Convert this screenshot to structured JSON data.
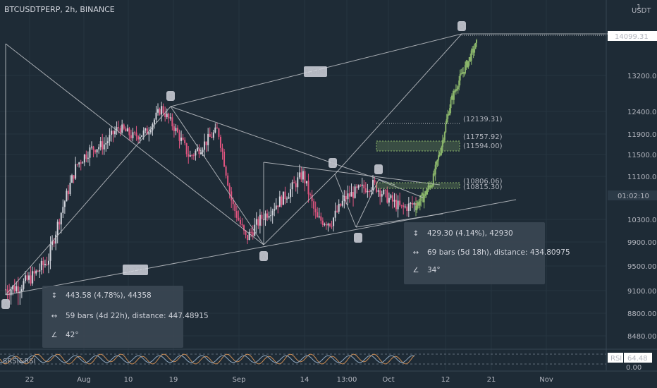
{
  "header": {
    "symbol": "BTCUSDTPERP, 2h, BINANCE"
  },
  "axis": {
    "currency_top": "1",
    "currency": "USDT",
    "price_ticks": [
      "13200.00",
      "12400.00",
      "11900.00",
      "11500.00",
      "11100.00",
      "10300.00",
      "9900.00",
      "9500.00",
      "9100.00",
      "8800.00",
      "8480.00"
    ],
    "price_tag": "14099.31",
    "current_time_tag": "01:02:10",
    "rsi_tag": "64.48",
    "rsi_tag_prefix": "RSI",
    "rsi_zero": "0.00",
    "time_ticks": [
      "22",
      "Aug",
      "10",
      "19",
      "Sep",
      "14",
      "13:00",
      "Oct",
      "12",
      "21",
      "Nov"
    ]
  },
  "pattern_labels": {
    "big_A": "A",
    "big_B": "B",
    "big_D": "D",
    "small_A": "A",
    "small_B": "B",
    "small_C": "C",
    "small_D": "D",
    "ratio_top": "1.604",
    "ratio_bottom": "0.778"
  },
  "targets": [
    "(12139.31)",
    "(11757.92)",
    "(11594.00)",
    "(10806.06)",
    "(10815.30)"
  ],
  "info_left": {
    "price": "443.58 (4.78%), 44358",
    "bars": "59 bars (4d 22h), distance: 447.48915",
    "angle": "42°"
  },
  "info_right": {
    "price": "429.30 (4.14%), 42930",
    "bars": "69 bars (5d 18h), distance: 434.80975",
    "angle": "34°"
  },
  "indicator": {
    "label": "SRSI&RSI"
  },
  "colors": {
    "background": "#1e2b36",
    "up": "#d1d4dc",
    "down": "#e05580",
    "forecast": "#8ab56b",
    "line": "#c0c3c8",
    "target_text": "#4dd0e1"
  },
  "chart_data": {
    "type": "candlestick",
    "title": "BTCUSDTPERP, 2h, BINANCE",
    "ylim": [
      8200,
      14500
    ],
    "x_tick_labels": [
      "22",
      "Aug",
      "10",
      "19",
      "Sep",
      "14",
      "13:00",
      "Oct",
      "12",
      "21",
      "Nov"
    ],
    "y_tick_labels": [
      "13200.00",
      "12400.00",
      "11900.00",
      "11500.00",
      "11100.00",
      "10300.00",
      "9900.00",
      "9500.00",
      "9100.00",
      "8800.00",
      "8480.00"
    ],
    "pattern_points": [
      {
        "label": "A",
        "price": 9120
      },
      {
        "label": "B",
        "price": 12480
      },
      {
        "label": "A",
        "price": 9950
      },
      {
        "label": "B",
        "price": 11150
      },
      {
        "label": "C",
        "price": 10250
      },
      {
        "label": "D",
        "price": 10950
      },
      {
        "label": "D",
        "price": 14099.31
      }
    ],
    "path_prices": [
      9120,
      9170,
      9350,
      9600,
      10500,
      11300,
      11600,
      11700,
      12050,
      11850,
      11950,
      12480,
      12000,
      11450,
      11700,
      12000,
      10600,
      9950,
      10300,
      10550,
      10800,
      11150,
      10300,
      10250,
      10700,
      10850,
      10950,
      10700,
      10500,
      10600
    ],
    "forecast_prices": [
      10550,
      10750,
      11050,
      11700,
      12600,
      13100,
      13500,
      13900
    ]
  }
}
